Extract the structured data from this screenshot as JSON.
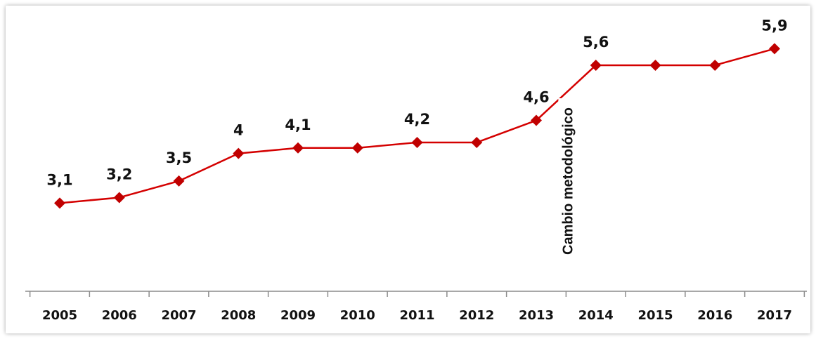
{
  "chart_data": {
    "type": "line",
    "categories": [
      "2005",
      "2006",
      "2007",
      "2008",
      "2009",
      "2010",
      "2011",
      "2012",
      "2013",
      "2014",
      "2015",
      "2016",
      "2017"
    ],
    "series": [
      {
        "values": [
          3.1,
          3.2,
          3.5,
          4.0,
          4.1,
          4.1,
          4.2,
          4.2,
          4.6,
          5.6,
          5.6,
          5.6,
          5.9
        ],
        "color": "#c00000",
        "marker": "diamond"
      }
    ],
    "data_labels": [
      {
        "x": "2005",
        "text": "3,1"
      },
      {
        "x": "2006",
        "text": "3,2"
      },
      {
        "x": "2007",
        "text": "3,5"
      },
      {
        "x": "2008",
        "text": "4"
      },
      {
        "x": "2009",
        "text": "4,1"
      },
      {
        "x": "2011",
        "text": "4,2"
      },
      {
        "x": "2013",
        "text": "4,6"
      },
      {
        "x": "2014",
        "text": "5,6"
      },
      {
        "x": "2017",
        "text": "5,9"
      }
    ],
    "annotation": {
      "text": "Cambio metodológico",
      "between": [
        "2013",
        "2014"
      ]
    },
    "title": "",
    "xlabel": "",
    "ylabel": "",
    "ylim": [
      1.5,
      6.3
    ],
    "grid": false,
    "legend": "none"
  }
}
